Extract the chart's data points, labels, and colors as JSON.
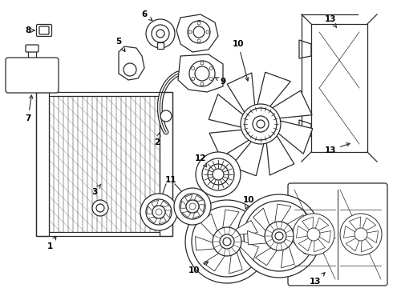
{
  "bg_color": "#ffffff",
  "line_color": "#2a2a2a",
  "label_color": "#000000",
  "lw": 0.9,
  "figsize": [
    4.9,
    3.6
  ],
  "dpi": 100,
  "label_fontsize": 7.5
}
